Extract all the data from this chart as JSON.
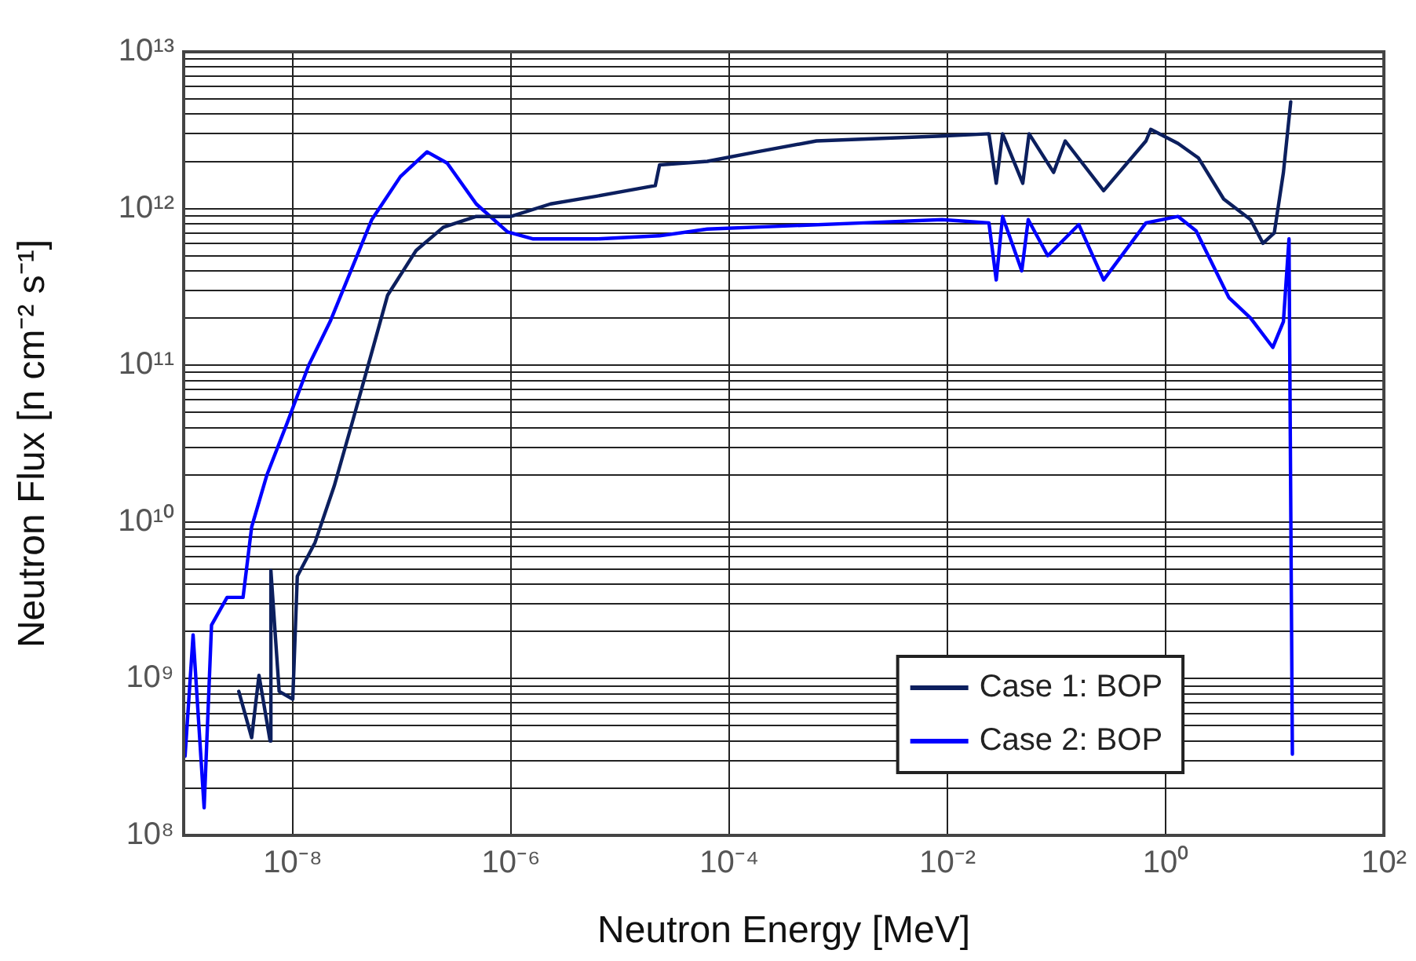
{
  "chart_data": {
    "type": "line",
    "xlabel": "Neutron Energy [MeV]",
    "ylabel": "Neutron Flux [n cm⁻² s⁻¹]",
    "log": "xy",
    "grid": true,
    "legend": "bottom right",
    "marker": "none",
    "line_style": "solid",
    "xlim": [
      1e-09,
      100
    ],
    "xticks": [
      {
        "value": 1e-08,
        "label": "10⁻⁸"
      },
      {
        "value": 1e-06,
        "label": "10⁻⁶"
      },
      {
        "value": 0.0001,
        "label": "10⁻⁴"
      },
      {
        "value": 0.01,
        "label": "10⁻²"
      },
      {
        "value": 1,
        "label": "10⁰"
      },
      {
        "value": 100,
        "label": "10²"
      }
    ],
    "ylim": [
      100000000.0,
      10000000000000.0
    ],
    "yticks": [
      {
        "value": 100000000.0,
        "label": "10⁸"
      },
      {
        "value": 200000000.0,
        "label": null
      },
      {
        "value": 300000000.0,
        "label": null
      },
      {
        "value": 400000000.0,
        "label": null
      },
      {
        "value": 500000000.0,
        "label": null
      },
      {
        "value": 600000000.0,
        "label": null
      },
      {
        "value": 700000000.0,
        "label": null
      },
      {
        "value": 800000000.0,
        "label": null
      },
      {
        "value": 900000000.0,
        "label": null
      },
      {
        "value": 1000000000.0,
        "label": "10⁹"
      },
      {
        "value": 2000000000.0,
        "label": null
      },
      {
        "value": 3000000000.0,
        "label": null
      },
      {
        "value": 4000000000.0,
        "label": null
      },
      {
        "value": 5000000000.0,
        "label": null
      },
      {
        "value": 6000000000.0,
        "label": null
      },
      {
        "value": 7000000000.0,
        "label": null
      },
      {
        "value": 8000000000.0,
        "label": null
      },
      {
        "value": 9000000000.0,
        "label": null
      },
      {
        "value": 10000000000.0,
        "label": "10¹⁰"
      },
      {
        "value": 20000000000.0,
        "label": null
      },
      {
        "value": 30000000000.0,
        "label": null
      },
      {
        "value": 40000000000.0,
        "label": null
      },
      {
        "value": 50000000000.0,
        "label": null
      },
      {
        "value": 60000000000.0,
        "label": null
      },
      {
        "value": 70000000000.0,
        "label": null
      },
      {
        "value": 80000000000.0,
        "label": null
      },
      {
        "value": 90000000000.0,
        "label": null
      },
      {
        "value": 100000000000.0,
        "label": "10¹¹"
      },
      {
        "value": 200000000000.0,
        "label": null
      },
      {
        "value": 300000000000.0,
        "label": null
      },
      {
        "value": 400000000000.0,
        "label": null
      },
      {
        "value": 500000000000.0,
        "label": null
      },
      {
        "value": 600000000000.0,
        "label": null
      },
      {
        "value": 700000000000.0,
        "label": null
      },
      {
        "value": 800000000000.0,
        "label": null
      },
      {
        "value": 900000000000.0,
        "label": null
      },
      {
        "value": 1000000000000.0,
        "label": "10¹²"
      },
      {
        "value": 2000000000000.0,
        "label": null
      },
      {
        "value": 3000000000000.0,
        "label": null
      },
      {
        "value": 4000000000000.0,
        "label": null
      },
      {
        "value": 5000000000000.0,
        "label": null
      },
      {
        "value": 6000000000000.0,
        "label": null
      },
      {
        "value": 7000000000000.0,
        "label": null
      },
      {
        "value": 8000000000000.0,
        "label": null
      },
      {
        "value": 9000000000000.0,
        "label": null
      },
      {
        "value": 10000000000000.0,
        "label": "10¹³"
      }
    ],
    "series": [
      {
        "name": "Case 1: BOP",
        "color": "#0c1f5e",
        "x": [
          3.2e-09,
          4.2e-09,
          4.9e-09,
          6.2e-09,
          6.3e-09,
          7.5e-09,
          1e-08,
          1.1e-08,
          1.6e-08,
          2.4e-08,
          3.6e-08,
          4.6e-08,
          7.4e-08,
          1.35e-07,
          2.4e-07,
          4.8e-07,
          1e-06,
          2.3e-06,
          6.1e-06,
          2.1e-05,
          2.3e-05,
          6.3e-05,
          0.00018,
          0.00063,
          0.0089,
          0.024,
          0.028,
          0.032,
          0.049,
          0.056,
          0.094,
          0.12,
          0.27,
          0.66,
          0.73,
          1.3,
          2.0,
          3.4,
          6.0,
          7.8,
          9.9,
          12,
          14
        ],
        "values": [
          830000000.0,
          420000000.0,
          1050000000.0,
          400000000.0,
          4900000000.0,
          830000000.0,
          740000000.0,
          4500000000.0,
          7400000000.0,
          17000000000.0,
          46000000000.0,
          85000000000.0,
          280000000000.0,
          540000000000.0,
          760000000000.0,
          890000000000.0,
          890000000000.0,
          1070000000000.0,
          1200000000000.0,
          1400000000000.0,
          1900000000000.0,
          2000000000000.0,
          2300000000000.0,
          2700000000000.0,
          2900000000000.0,
          3000000000000.0,
          1450000000000.0,
          3000000000000.0,
          1450000000000.0,
          3000000000000.0,
          1700000000000.0,
          2700000000000.0,
          1300000000000.0,
          2700000000000.0,
          3200000000000.0,
          2600000000000.0,
          2100000000000.0,
          1150000000000.0,
          850000000000.0,
          600000000000.0,
          700000000000.0,
          1700000000000.0,
          4800000000000.0
        ]
      },
      {
        "name": "Case 2: BOP",
        "color": "#0000ff",
        "x": [
          1.03e-09,
          1.22e-09,
          1.54e-09,
          1.8e-09,
          2.5e-09,
          3.5e-09,
          4.2e-09,
          5.8e-09,
          8.9e-09,
          1.4e-08,
          2.2e-08,
          5.3e-08,
          9.7e-08,
          1.7e-07,
          2.6e-07,
          4.8e-07,
          9.3e-07,
          1.6e-06,
          6.1e-06,
          2.3e-05,
          6.3e-05,
          0.0017,
          0.0089,
          0.024,
          0.028,
          0.032,
          0.048,
          0.055,
          0.083,
          0.16,
          0.27,
          0.66,
          1.3,
          1.9,
          3.8,
          6.0,
          9.6,
          12,
          13.5,
          14.5
        ],
        "values": [
          320000000.0,
          1900000000.0,
          150000000.0,
          2200000000.0,
          3300000000.0,
          3300000000.0,
          9300000000.0,
          20000000000.0,
          43000000000.0,
          100000000000.0,
          190000000000.0,
          850000000000.0,
          1600000000000.0,
          2300000000000.0,
          1950000000000.0,
          1070000000000.0,
          710000000000.0,
          640000000000.0,
          640000000000.0,
          670000000000.0,
          740000000000.0,
          810000000000.0,
          850000000000.0,
          810000000000.0,
          350000000000.0,
          890000000000.0,
          400000000000.0,
          850000000000.0,
          500000000000.0,
          790000000000.0,
          350000000000.0,
          810000000000.0,
          890000000000.0,
          720000000000.0,
          270000000000.0,
          200000000000.0,
          130000000000.0,
          190000000000.0,
          640000000000.0,
          330000000.0
        ]
      }
    ]
  }
}
